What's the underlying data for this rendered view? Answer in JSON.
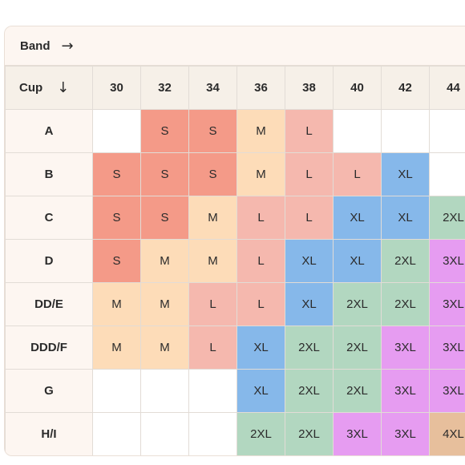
{
  "band_label": "Band",
  "band_arrow": "→",
  "cup_label": "Cup",
  "cup_arrow": "↓",
  "bands": [
    "30",
    "32",
    "34",
    "36",
    "38",
    "40",
    "42",
    "44"
  ],
  "rows": [
    {
      "cup": "A",
      "sizes": [
        "",
        "S",
        "S",
        "M",
        "L",
        "",
        "",
        ""
      ]
    },
    {
      "cup": "B",
      "sizes": [
        "S",
        "S",
        "S",
        "M",
        "L",
        "L",
        "XL",
        ""
      ]
    },
    {
      "cup": "C",
      "sizes": [
        "S",
        "S",
        "M",
        "L",
        "L",
        "XL",
        "XL",
        "2XL"
      ]
    },
    {
      "cup": "D",
      "sizes": [
        "S",
        "M",
        "M",
        "L",
        "XL",
        "XL",
        "2XL",
        "3XL"
      ]
    },
    {
      "cup": "DD/E",
      "sizes": [
        "M",
        "M",
        "L",
        "L",
        "XL",
        "2XL",
        "2XL",
        "3XL"
      ]
    },
    {
      "cup": "DDD/F",
      "sizes": [
        "M",
        "M",
        "L",
        "XL",
        "2XL",
        "2XL",
        "3XL",
        "3XL"
      ]
    },
    {
      "cup": "G",
      "sizes": [
        "",
        "",
        "",
        "XL",
        "2XL",
        "2XL",
        "3XL",
        "3XL"
      ]
    },
    {
      "cup": "H/I",
      "sizes": [
        "",
        "",
        "",
        "2XL",
        "2XL",
        "3XL",
        "3XL",
        "4XL"
      ]
    }
  ],
  "size_colors": {
    "S": "#f49a88",
    "M": "#fddcb8",
    "L": "#f5b8ae",
    "XL": "#86b8ea",
    "2XL": "#b2d7c0",
    "3XL": "#e69cf1",
    "4XL": "#e7bf9c"
  }
}
